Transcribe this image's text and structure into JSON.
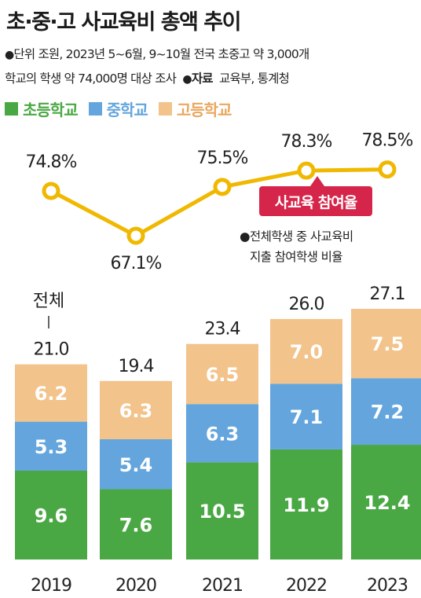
{
  "title": "초·중·고 사교육비 총액 추이",
  "notes": {
    "unit_line": "단위  조원, 2023년 5~6월, 9~10월 전국 초중고 약 3,000개",
    "scope_line": "학교의 학생 약 74,000명 대상 조사",
    "source_label": "자료",
    "source_text": "교육부, 통계청"
  },
  "legend": [
    {
      "name": "초등학교",
      "color": "#4aa844"
    },
    {
      "name": "중학교",
      "color": "#63a5dc"
    },
    {
      "name": "고등학교",
      "color": "#f2c38a"
    }
  ],
  "badge": {
    "label": "사교육 참여율",
    "color": "#d6254a"
  },
  "line_note": [
    "전체학생 중 사교육비",
    "지출 참여학생 비율"
  ],
  "total_label": "전체",
  "chart_data": [
    {
      "type": "line",
      "x": [
        "2019",
        "2020",
        "2021",
        "2022",
        "2023"
      ],
      "values": [
        74.8,
        67.1,
        75.5,
        78.3,
        78.5
      ],
      "value_labels": [
        "74.8%",
        "67.1%",
        "75.5%",
        "78.3%",
        "78.5%"
      ],
      "color": "#f0b800"
    },
    {
      "type": "bar",
      "stacked": true,
      "categories": [
        "2019",
        "2020",
        "2021",
        "2022",
        "2023"
      ],
      "series": [
        {
          "name": "초등학교",
          "values": [
            9.6,
            7.6,
            10.5,
            11.9,
            12.4
          ],
          "color": "#4aa844"
        },
        {
          "name": "중학교",
          "values": [
            5.3,
            5.4,
            6.3,
            7.1,
            7.2
          ],
          "color": "#63a5dc"
        },
        {
          "name": "고등학교",
          "values": [
            6.2,
            6.3,
            6.5,
            7.0,
            7.5
          ],
          "color": "#f2c38a"
        }
      ],
      "totals": [
        21.0,
        19.4,
        23.4,
        26.0,
        27.1
      ],
      "total_labels": [
        "21.0",
        "19.4",
        "23.4",
        "26.0",
        "27.1"
      ],
      "ylim": [
        0,
        27.1
      ]
    }
  ]
}
